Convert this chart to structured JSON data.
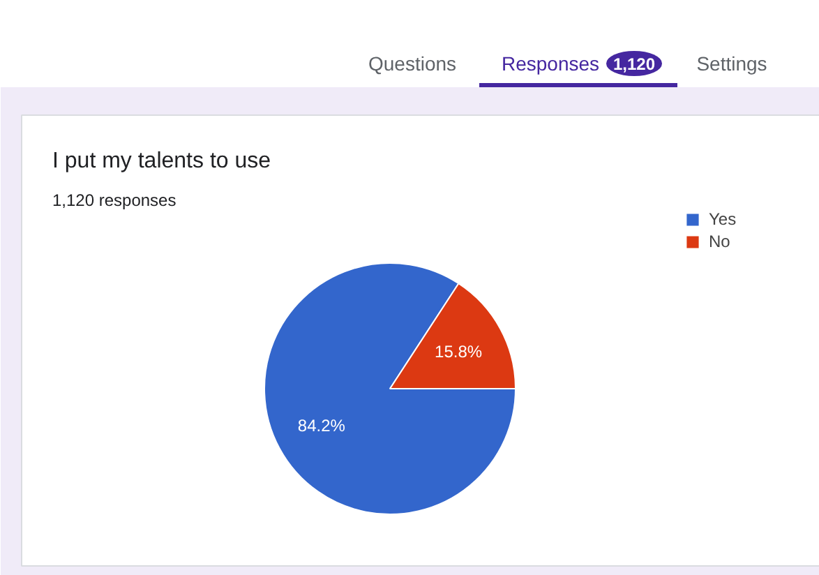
{
  "chart_data": {
    "type": "pie",
    "title": "I put my talents to use",
    "subtitle": "1,120 responses",
    "categories": [
      "Yes",
      "No"
    ],
    "values": [
      84.2,
      15.8
    ],
    "colors": [
      "#3366cc",
      "#dc3912"
    ],
    "value_labels": [
      "84.2%",
      "15.8%"
    ],
    "legend": "top right",
    "annotations": [
      "Questions",
      "Responses",
      "1,120",
      "Settings"
    ]
  }
}
